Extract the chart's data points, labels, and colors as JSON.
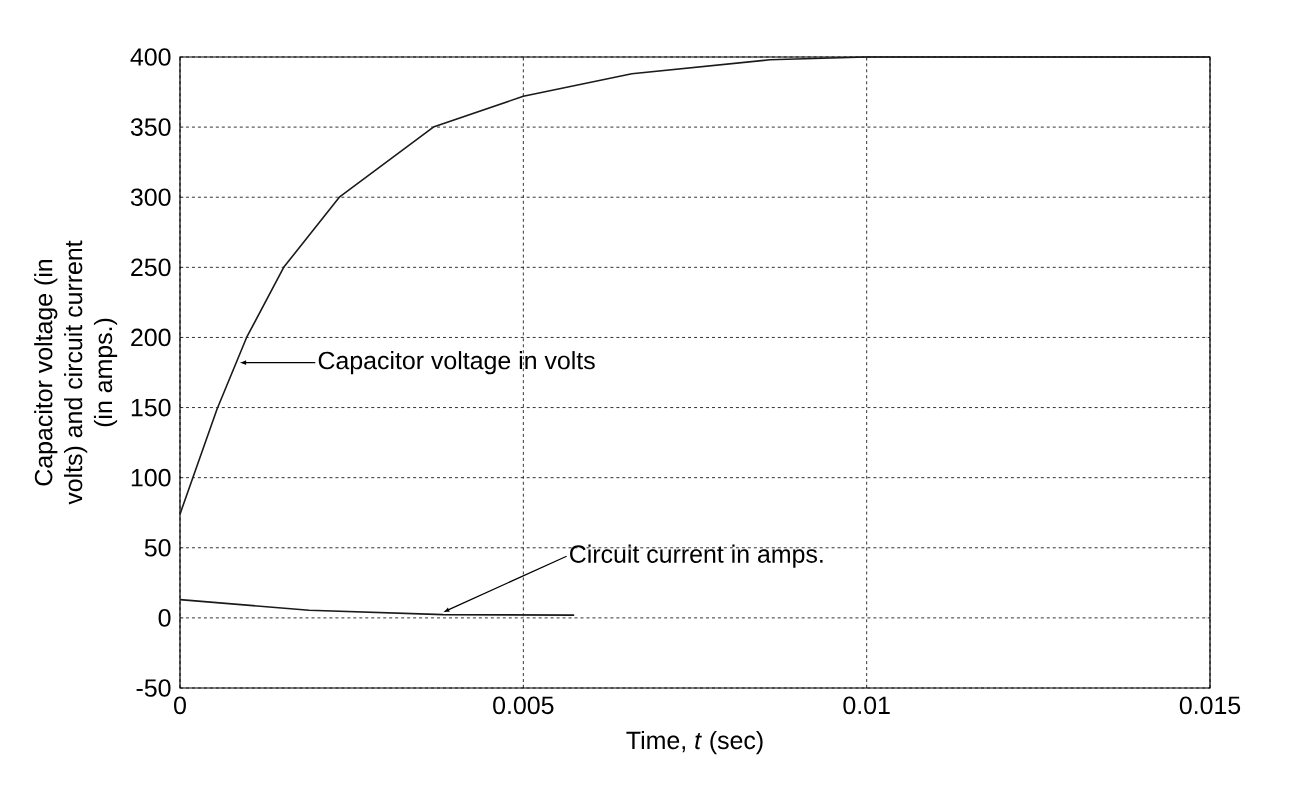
{
  "chart_data": {
    "type": "line",
    "xlabel": "Time, *t* (sec)",
    "ylabel": "Capacitor voltage (in volts) and circuit current (in amps.)",
    "series": [
      {
        "color": "#1a1a1a",
        "x": [
          0,
          0.00054,
          0.00097,
          0.00151,
          0.00232,
          0.00369,
          0.005,
          0.00658,
          0.00859,
          0.01,
          0.015
        ],
        "values": [
          74,
          149,
          200,
          250,
          300,
          350,
          372,
          388,
          398,
          400,
          400
        ]
      },
      {
        "color": "#1a1a1a",
        "x": [
          0,
          0.00188,
          0.00383,
          0.00574
        ],
        "values": [
          13,
          5.5,
          2.3,
          2
        ]
      }
    ],
    "annotations": [
      {
        "text": "Capacitor voltage in volts",
        "x": 0.00087,
        "y": 182
      },
      {
        "text": "Circuit current in amps.",
        "x": 0.00383,
        "y": 4
      }
    ],
    "xlim": [
      0,
      0.015
    ],
    "ylim": [
      -50,
      400
    ],
    "xticks": [
      0,
      0.005,
      0.01,
      0.015
    ],
    "yticks": [
      -50,
      0,
      50,
      100,
      150,
      200,
      250,
      300,
      350,
      400
    ],
    "grid": true,
    "line_style": "solid",
    "marker": "none"
  }
}
